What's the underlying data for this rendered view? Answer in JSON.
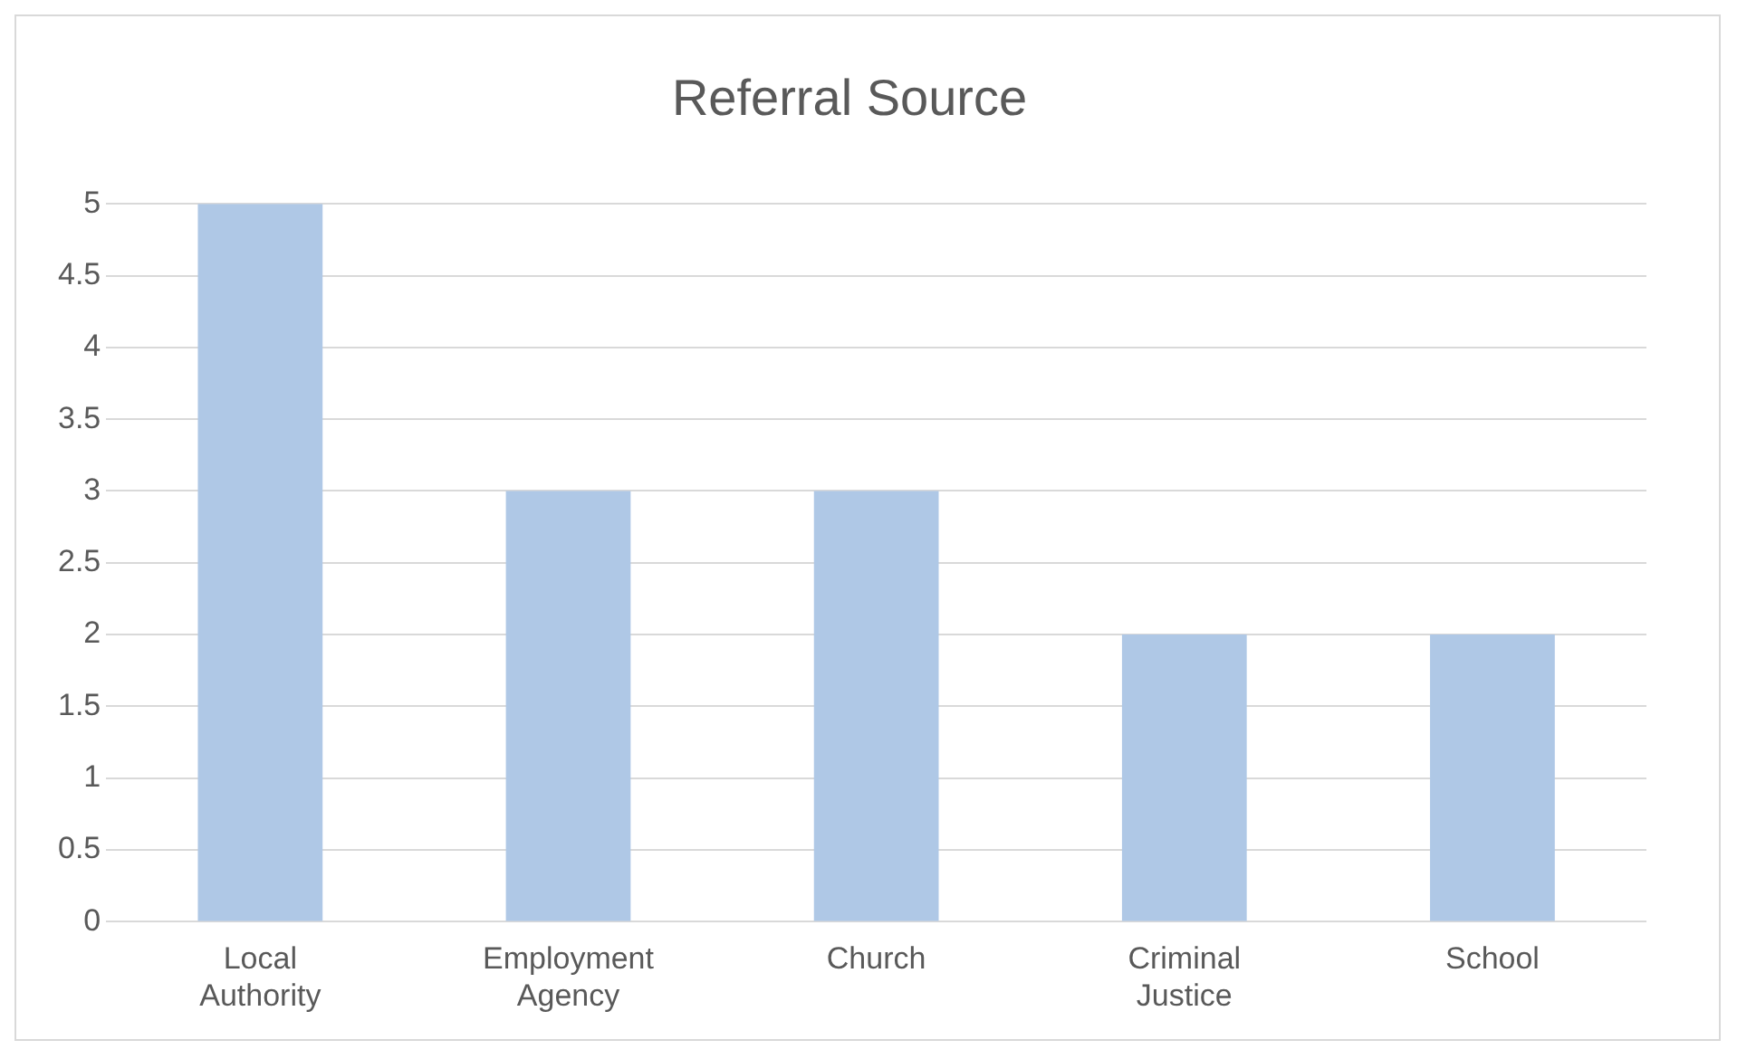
{
  "chart_data": {
    "type": "bar",
    "title": "Referral Source",
    "categories": [
      "Local Authority",
      "Employment Agency",
      "Church",
      "Criminal Justice",
      "School"
    ],
    "values": [
      5,
      3,
      3,
      2,
      2
    ],
    "color": "#afc8e6",
    "ylim": [
      0,
      5
    ],
    "yticks": [
      0,
      0.5,
      1,
      1.5,
      2,
      2.5,
      3,
      3.5,
      4,
      4.5,
      5
    ],
    "grid": "y",
    "legend": false
  }
}
